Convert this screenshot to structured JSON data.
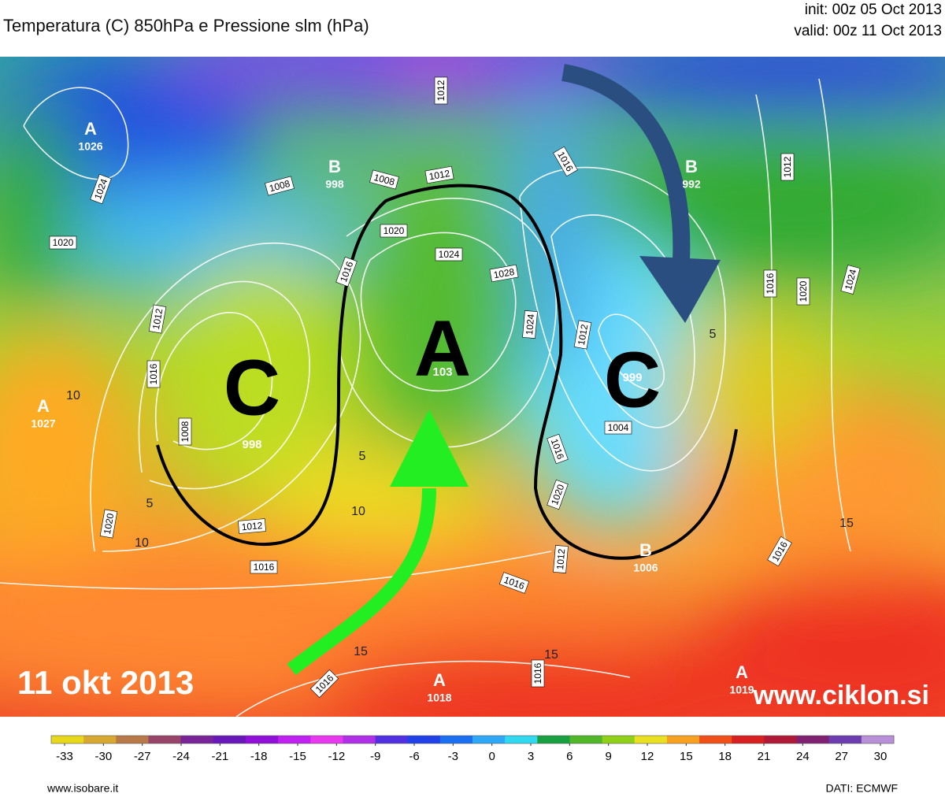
{
  "header": {
    "title": "Temperatura (C) 850hPa e Pressione slm (hPa)",
    "init": "init: 00z 05 Oct 2013",
    "valid": "valid: 00z 11 Oct 2013"
  },
  "map": {
    "date_label": "11 okt 2013",
    "watermark": "www.ciklon.si",
    "centers": [
      {
        "letter": "A",
        "value": "1026"
      },
      {
        "letter": "B",
        "value": "998"
      },
      {
        "letter": "B",
        "value": "992"
      },
      {
        "letter": "A",
        "value": "1027"
      },
      {
        "letter": "A",
        "value": "1018"
      },
      {
        "letter": "A",
        "value": "1019"
      },
      {
        "letter": "B",
        "value": "1006"
      }
    ],
    "big_letters": [
      {
        "letter": "C",
        "value": "998"
      },
      {
        "letter": "A",
        "value": "103"
      },
      {
        "letter": "C",
        "value": "999"
      }
    ],
    "isobar_labels": [
      "1024",
      "1020",
      "1008",
      "1008",
      "1012",
      "1016",
      "1012",
      "1016",
      "1020",
      "1024",
      "1028",
      "1012",
      "1016",
      "1008",
      "1012",
      "1016",
      "1020",
      "1024",
      "1012",
      "1004",
      "1016",
      "1020",
      "1012",
      "1016",
      "1016",
      "1016",
      "1016",
      "1020",
      "1024",
      "1016",
      "1012"
    ],
    "temperature_labels": [
      "10",
      "5",
      "10",
      "10",
      "5",
      "15",
      "15",
      "5",
      "15"
    ]
  },
  "colorbar": {
    "ticks": [
      -33,
      -30,
      -27,
      -24,
      -21,
      -18,
      -15,
      -12,
      -9,
      -6,
      -3,
      0,
      3,
      6,
      9,
      12,
      15,
      18,
      21,
      24,
      27,
      30
    ],
    "colors": [
      "#e8d81c",
      "#d8a830",
      "#b87848",
      "#984468",
      "#782498",
      "#6818b8",
      "#9010d8",
      "#c020f0",
      "#e838f0",
      "#b030e8",
      "#5030e0",
      "#2040e8",
      "#1a70f0",
      "#30a8f8",
      "#30d8f0",
      "#18a040",
      "#50b828",
      "#90d018",
      "#e8e020",
      "#f8a020",
      "#f05018",
      "#d82020",
      "#b01838",
      "#802070",
      "#6c3cb0",
      "#b890d8"
    ]
  },
  "footer": {
    "left": "www.isobare.it",
    "right": "DATI:  ECMWF"
  }
}
